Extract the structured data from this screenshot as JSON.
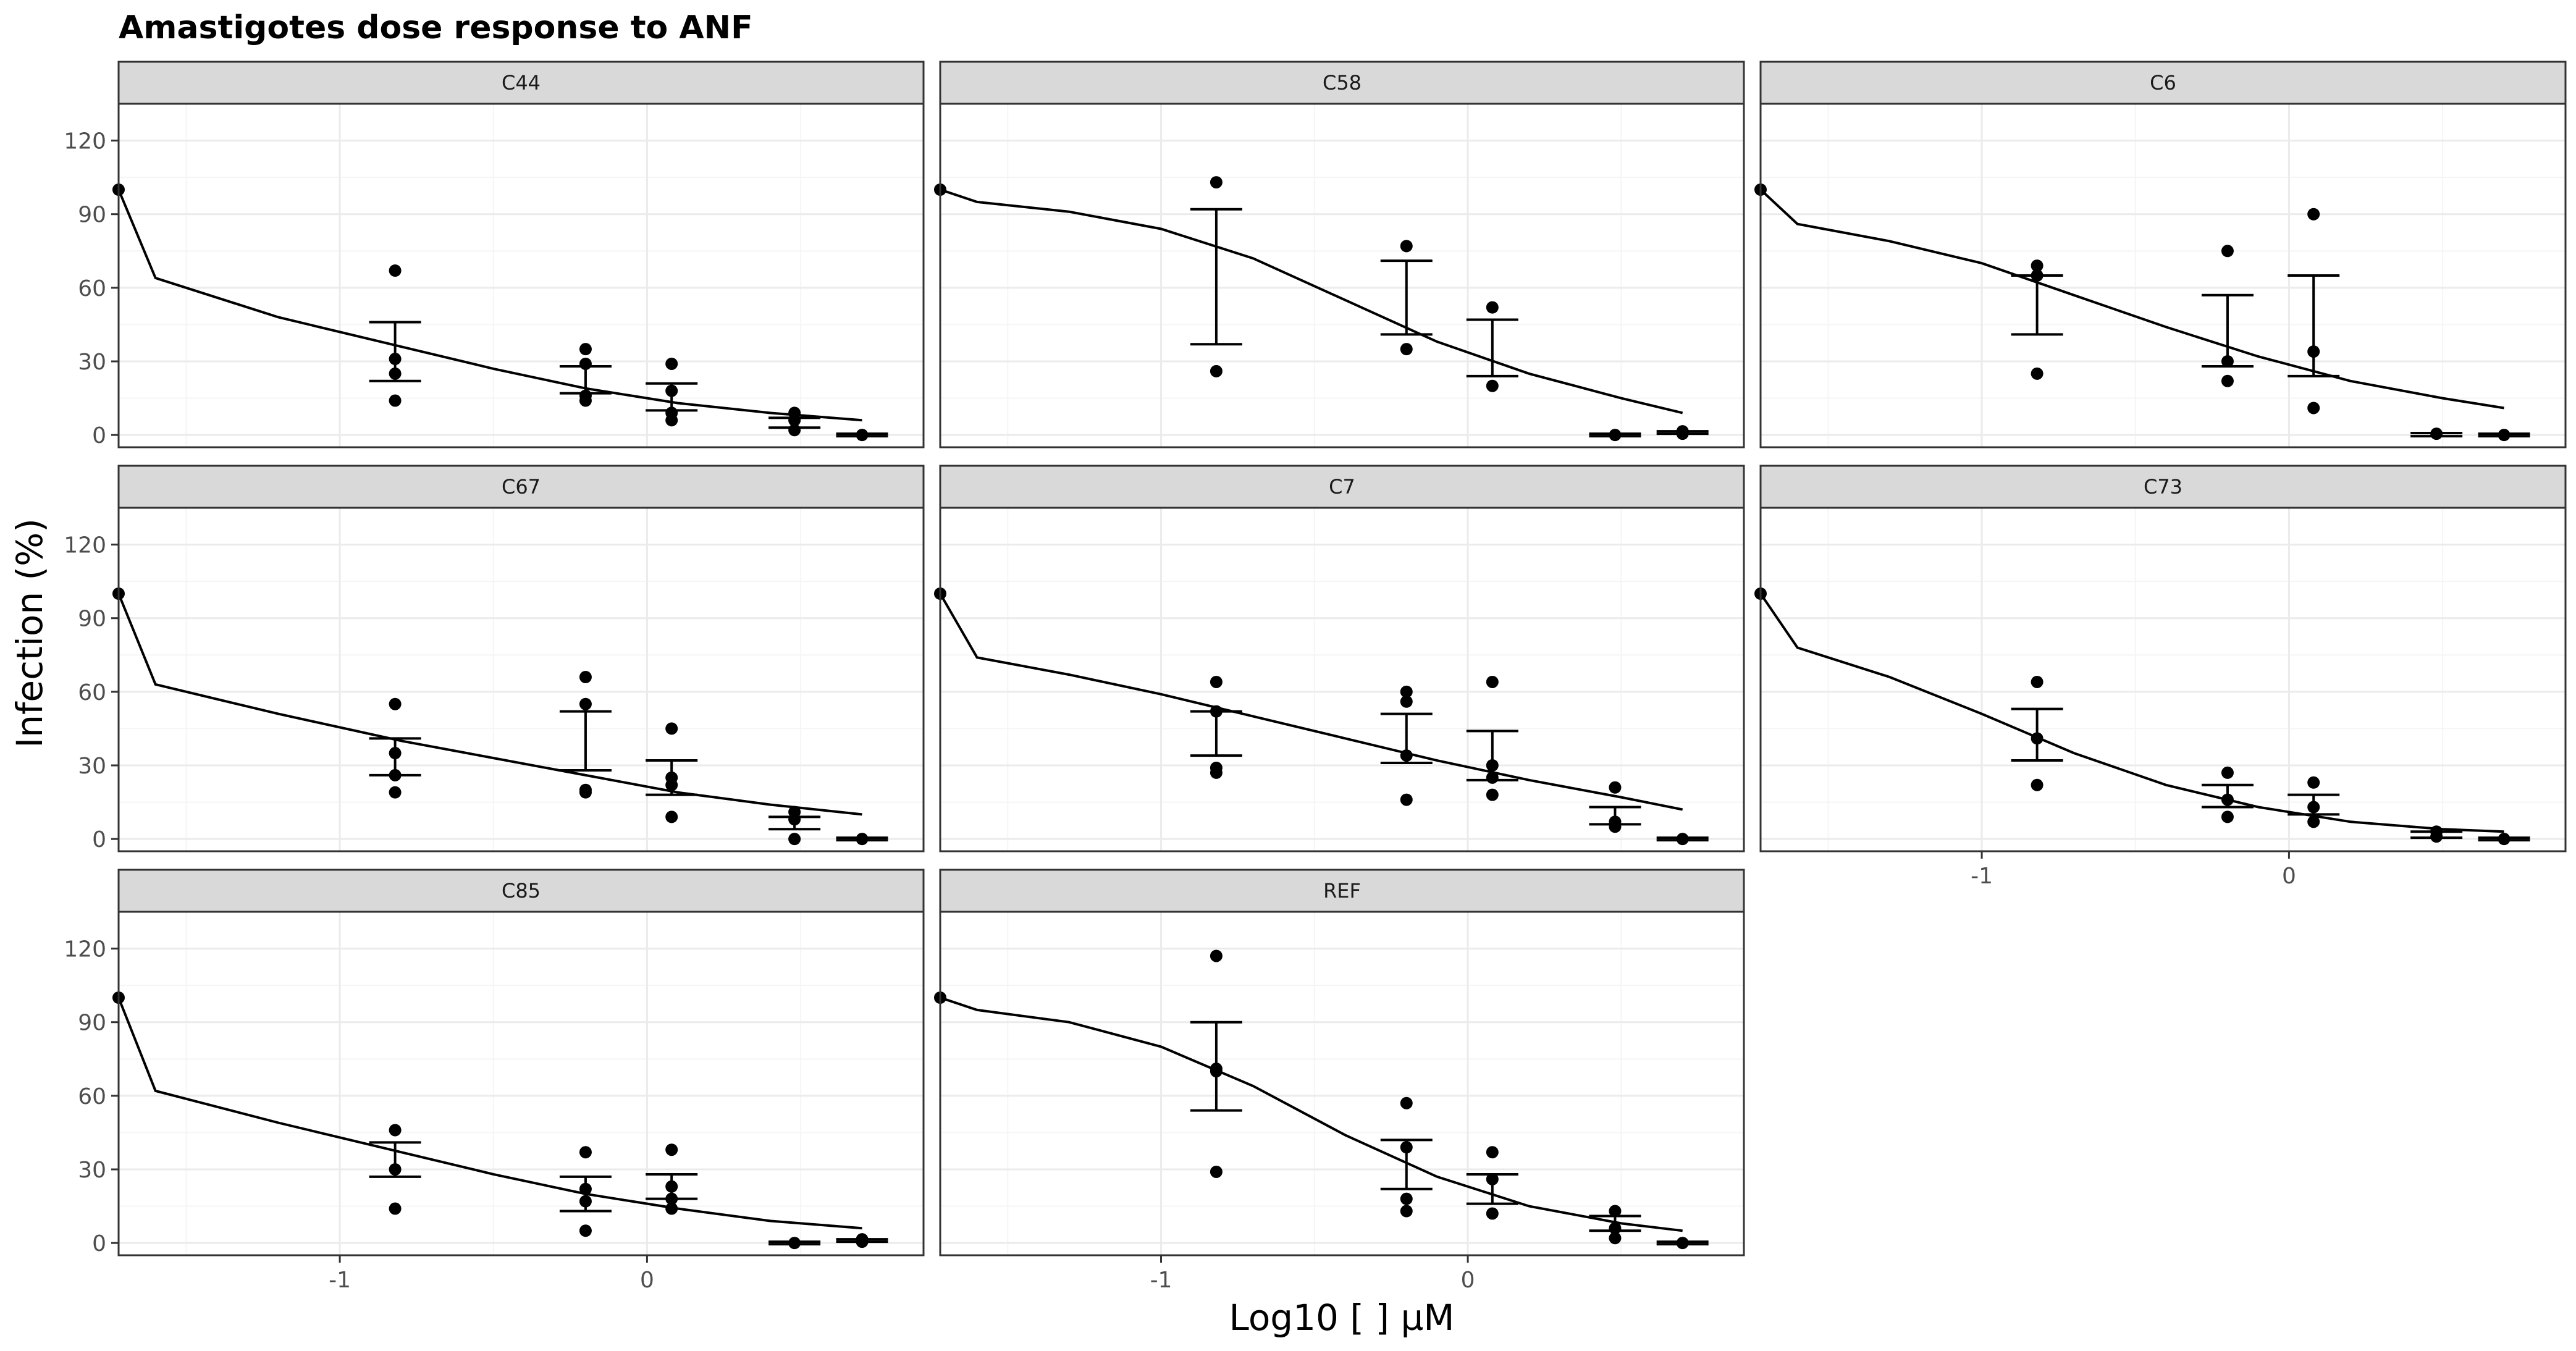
{
  "chart_data": {
    "type": "scatter",
    "title": "Amastigotes dose response to ANF",
    "xlabel": "Log10 [ ] µM",
    "ylabel": "Infection (%)",
    "xlim": [
      -1.72,
      0.9
    ],
    "ylim": [
      -5,
      135
    ],
    "x_ticks": [
      -1,
      0
    ],
    "x_tick_labels": [
      "-1",
      "0"
    ],
    "y_ticks": [
      0,
      30,
      60,
      90,
      120
    ],
    "y_tick_labels": [
      "0",
      "30",
      "60",
      "90",
      "120"
    ],
    "grid": true,
    "colors": {
      "panel_border": "#333333",
      "strip_fill": "#d9d9d9",
      "grid_major": "#ebebeb",
      "grid_minor": "#f5f5f5",
      "marks": "#000000"
    },
    "panels": [
      {
        "name": "C44",
        "points": [
          [
            -1.72,
            100
          ],
          [
            -0.82,
            67
          ],
          [
            -0.82,
            31
          ],
          [
            -0.82,
            25
          ],
          [
            -0.82,
            14
          ],
          [
            -0.2,
            35
          ],
          [
            -0.2,
            29
          ],
          [
            -0.2,
            16
          ],
          [
            -0.2,
            14
          ],
          [
            0.08,
            29
          ],
          [
            0.08,
            18
          ],
          [
            0.08,
            9
          ],
          [
            0.08,
            6
          ],
          [
            0.48,
            9
          ],
          [
            0.48,
            6
          ],
          [
            0.48,
            2
          ],
          [
            0.7,
            0
          ]
        ],
        "errorbars": [
          [
            -0.82,
            22,
            46
          ],
          [
            -0.2,
            17,
            28
          ],
          [
            0.08,
            10,
            21
          ],
          [
            0.48,
            3,
            7
          ],
          [
            0.7,
            -0.5,
            0.5
          ]
        ],
        "curve": [
          [
            -1.72,
            100
          ],
          [
            -1.6,
            64
          ],
          [
            -1.2,
            48
          ],
          [
            -0.8,
            36
          ],
          [
            -0.5,
            27
          ],
          [
            -0.2,
            19
          ],
          [
            0.1,
            13
          ],
          [
            0.4,
            9
          ],
          [
            0.7,
            6
          ]
        ]
      },
      {
        "name": "C58",
        "points": [
          [
            -1.72,
            100
          ],
          [
            -0.82,
            103
          ],
          [
            -0.82,
            26
          ],
          [
            -0.2,
            77
          ],
          [
            -0.2,
            35
          ],
          [
            0.08,
            52
          ],
          [
            0.08,
            20
          ],
          [
            0.48,
            0
          ],
          [
            0.7,
            1.5
          ],
          [
            0.7,
            0.5
          ]
        ],
        "errorbars": [
          [
            -0.82,
            37,
            92
          ],
          [
            -0.2,
            41,
            71
          ],
          [
            0.08,
            24,
            47
          ],
          [
            0.48,
            -0.5,
            0.5
          ],
          [
            0.7,
            0.5,
            1.5
          ]
        ],
        "curve": [
          [
            -1.72,
            100
          ],
          [
            -1.6,
            95
          ],
          [
            -1.3,
            91
          ],
          [
            -1.0,
            84
          ],
          [
            -0.7,
            72
          ],
          [
            -0.4,
            55
          ],
          [
            -0.1,
            38
          ],
          [
            0.2,
            25
          ],
          [
            0.5,
            15
          ],
          [
            0.7,
            9
          ]
        ]
      },
      {
        "name": "C6",
        "points": [
          [
            -1.72,
            100
          ],
          [
            -0.82,
            69
          ],
          [
            -0.82,
            65
          ],
          [
            -0.82,
            25
          ],
          [
            -0.2,
            75
          ],
          [
            -0.2,
            30
          ],
          [
            -0.2,
            22
          ],
          [
            0.08,
            90
          ],
          [
            0.08,
            34
          ],
          [
            0.08,
            11
          ],
          [
            0.48,
            0.5
          ],
          [
            0.7,
            0
          ]
        ],
        "errorbars": [
          [
            -0.82,
            41,
            65
          ],
          [
            -0.2,
            28,
            57
          ],
          [
            0.08,
            24,
            65
          ],
          [
            0.48,
            -0.5,
            0.8
          ],
          [
            0.7,
            -0.5,
            0.5
          ]
        ],
        "curve": [
          [
            -1.72,
            100
          ],
          [
            -1.6,
            86
          ],
          [
            -1.3,
            79
          ],
          [
            -1.0,
            70
          ],
          [
            -0.7,
            57
          ],
          [
            -0.4,
            44
          ],
          [
            -0.1,
            32
          ],
          [
            0.2,
            22
          ],
          [
            0.5,
            15
          ],
          [
            0.7,
            11
          ]
        ]
      },
      {
        "name": "C67",
        "points": [
          [
            -1.72,
            100
          ],
          [
            -0.82,
            55
          ],
          [
            -0.82,
            35
          ],
          [
            -0.82,
            26
          ],
          [
            -0.82,
            19
          ],
          [
            -0.2,
            66
          ],
          [
            -0.2,
            55
          ],
          [
            -0.2,
            20
          ],
          [
            -0.2,
            19
          ],
          [
            0.08,
            45
          ],
          [
            0.08,
            25
          ],
          [
            0.08,
            22
          ],
          [
            0.08,
            9
          ],
          [
            0.48,
            11
          ],
          [
            0.48,
            8
          ],
          [
            0.48,
            0
          ],
          [
            0.7,
            0
          ]
        ],
        "errorbars": [
          [
            -0.82,
            26,
            41
          ],
          [
            -0.2,
            28,
            52
          ],
          [
            0.08,
            18,
            32
          ],
          [
            0.48,
            4,
            9
          ],
          [
            0.7,
            -0.5,
            0.5
          ]
        ],
        "curve": [
          [
            -1.72,
            100
          ],
          [
            -1.6,
            63
          ],
          [
            -1.2,
            51
          ],
          [
            -0.8,
            40
          ],
          [
            -0.5,
            33
          ],
          [
            -0.2,
            26
          ],
          [
            0.1,
            19
          ],
          [
            0.4,
            14
          ],
          [
            0.7,
            10
          ]
        ]
      },
      {
        "name": "C7",
        "points": [
          [
            -1.72,
            100
          ],
          [
            -0.82,
            64
          ],
          [
            -0.82,
            52
          ],
          [
            -0.82,
            29
          ],
          [
            -0.82,
            27
          ],
          [
            -0.2,
            60
          ],
          [
            -0.2,
            56
          ],
          [
            -0.2,
            34
          ],
          [
            -0.2,
            16
          ],
          [
            0.08,
            64
          ],
          [
            0.08,
            30
          ],
          [
            0.08,
            25
          ],
          [
            0.08,
            18
          ],
          [
            0.48,
            21
          ],
          [
            0.48,
            7
          ],
          [
            0.48,
            5
          ],
          [
            0.7,
            0
          ]
        ],
        "errorbars": [
          [
            -0.82,
            34,
            52
          ],
          [
            -0.2,
            31,
            51
          ],
          [
            0.08,
            24,
            44
          ],
          [
            0.48,
            6,
            13
          ],
          [
            0.7,
            -0.5,
            0.5
          ]
        ],
        "curve": [
          [
            -1.72,
            100
          ],
          [
            -1.6,
            74
          ],
          [
            -1.3,
            67
          ],
          [
            -1.0,
            59
          ],
          [
            -0.7,
            50
          ],
          [
            -0.4,
            41
          ],
          [
            -0.1,
            32
          ],
          [
            0.2,
            24
          ],
          [
            0.5,
            17
          ],
          [
            0.7,
            12
          ]
        ]
      },
      {
        "name": "C73",
        "points": [
          [
            -1.72,
            100
          ],
          [
            -0.82,
            64
          ],
          [
            -0.82,
            41
          ],
          [
            -0.82,
            22
          ],
          [
            -0.2,
            27
          ],
          [
            -0.2,
            16
          ],
          [
            -0.2,
            9
          ],
          [
            0.08,
            23
          ],
          [
            0.08,
            13
          ],
          [
            0.08,
            7
          ],
          [
            0.48,
            3
          ],
          [
            0.48,
            1
          ],
          [
            0.7,
            0
          ]
        ],
        "errorbars": [
          [
            -0.82,
            32,
            53
          ],
          [
            -0.2,
            13,
            22
          ],
          [
            0.08,
            10,
            18
          ],
          [
            0.48,
            0.5,
            3
          ],
          [
            0.7,
            -0.5,
            0.5
          ]
        ],
        "curve": [
          [
            -1.72,
            100
          ],
          [
            -1.6,
            78
          ],
          [
            -1.3,
            66
          ],
          [
            -1.0,
            51
          ],
          [
            -0.7,
            35
          ],
          [
            -0.4,
            22
          ],
          [
            -0.1,
            13
          ],
          [
            0.2,
            7
          ],
          [
            0.5,
            4
          ],
          [
            0.7,
            3
          ]
        ]
      },
      {
        "name": "C85",
        "points": [
          [
            -1.72,
            100
          ],
          [
            -0.82,
            46
          ],
          [
            -0.82,
            30
          ],
          [
            -0.82,
            14
          ],
          [
            -0.2,
            37
          ],
          [
            -0.2,
            22
          ],
          [
            -0.2,
            17
          ],
          [
            -0.2,
            5
          ],
          [
            0.08,
            38
          ],
          [
            0.08,
            23
          ],
          [
            0.08,
            18
          ],
          [
            0.08,
            14
          ],
          [
            0.48,
            0
          ],
          [
            0.7,
            1.5
          ],
          [
            0.7,
            0.5
          ]
        ],
        "errorbars": [
          [
            -0.82,
            27,
            41
          ],
          [
            -0.2,
            13,
            27
          ],
          [
            0.08,
            18,
            28
          ],
          [
            0.48,
            -0.5,
            0.5
          ],
          [
            0.7,
            0.5,
            1.5
          ]
        ],
        "curve": [
          [
            -1.72,
            100
          ],
          [
            -1.6,
            62
          ],
          [
            -1.2,
            49
          ],
          [
            -0.8,
            37
          ],
          [
            -0.5,
            28
          ],
          [
            -0.2,
            20
          ],
          [
            0.1,
            14
          ],
          [
            0.4,
            9
          ],
          [
            0.7,
            6
          ]
        ]
      },
      {
        "name": "REF",
        "points": [
          [
            -1.72,
            100
          ],
          [
            -0.82,
            117
          ],
          [
            -0.82,
            71
          ],
          [
            -0.82,
            70
          ],
          [
            -0.82,
            29
          ],
          [
            -0.2,
            57
          ],
          [
            -0.2,
            39
          ],
          [
            -0.2,
            18
          ],
          [
            -0.2,
            13
          ],
          [
            0.08,
            37
          ],
          [
            0.08,
            26
          ],
          [
            0.08,
            12
          ],
          [
            0.48,
            13
          ],
          [
            0.48,
            6
          ],
          [
            0.48,
            2
          ],
          [
            0.7,
            0
          ]
        ],
        "errorbars": [
          [
            -0.82,
            54,
            90
          ],
          [
            -0.2,
            22,
            42
          ],
          [
            0.08,
            16,
            28
          ],
          [
            0.48,
            5,
            11
          ],
          [
            0.7,
            -0.5,
            0.5
          ]
        ],
        "curve": [
          [
            -1.72,
            100
          ],
          [
            -1.6,
            95
          ],
          [
            -1.3,
            90
          ],
          [
            -1.0,
            80
          ],
          [
            -0.7,
            64
          ],
          [
            -0.4,
            44
          ],
          [
            -0.1,
            27
          ],
          [
            0.2,
            15
          ],
          [
            0.5,
            8
          ],
          [
            0.7,
            5
          ]
        ]
      }
    ]
  }
}
